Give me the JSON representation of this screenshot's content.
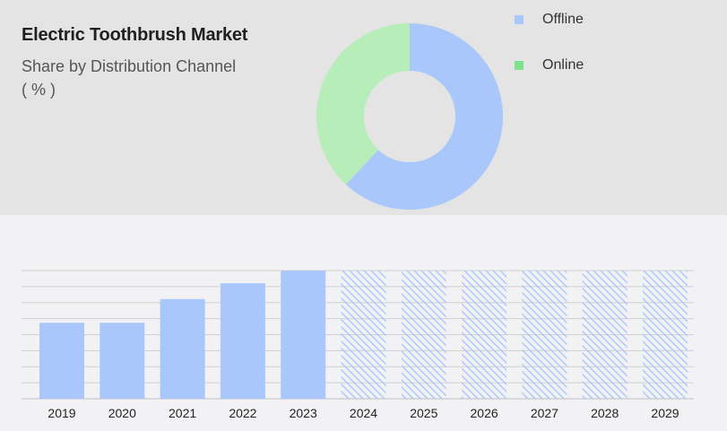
{
  "header": {
    "title": "Electric Toothbrush Market",
    "subtitle": "Share by Distribution Channel",
    "unit": "( % )"
  },
  "colors": {
    "offline": "#a9c7fb",
    "online": "#b6edb8",
    "online_swatch": "#7ee28e",
    "forecast_hatch": "#a9c7fb",
    "grid": "#d0d0d0",
    "axis": "#bfbfbf",
    "panel": "#e4e4e4",
    "background": "#f2f2f4"
  },
  "legend": [
    {
      "label": "Offline",
      "key": "offline"
    },
    {
      "label": "Online",
      "key": "online"
    }
  ],
  "chart_data": [
    {
      "type": "pie",
      "variant": "donut",
      "labels": [
        "Offline",
        "Online"
      ],
      "values": [
        62,
        38
      ],
      "legend_position": "top-right"
    },
    {
      "type": "bar",
      "categories": [
        "2019",
        "2020",
        "2021",
        "2022",
        "2023",
        "2024",
        "2025",
        "2026",
        "2027",
        "2028",
        "2029"
      ],
      "values": [
        4.8,
        4.8,
        6.3,
        7.3,
        8.1,
        8.1,
        8.1,
        8.1,
        8.1,
        8.1,
        8.1
      ],
      "forecast_from": "2024",
      "ylim": [
        0,
        8.1
      ],
      "grid": true,
      "ytick_labels_shown": false
    }
  ]
}
